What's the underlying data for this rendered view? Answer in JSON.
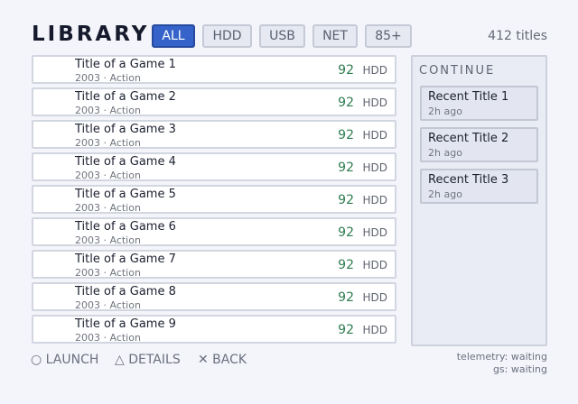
{
  "header": {
    "title": "LIBRARY",
    "filters": [
      "ALL",
      "HDD",
      "USB",
      "NET",
      "85+"
    ],
    "count": "412 titles"
  },
  "games": [
    {
      "title": "Title of a Game 1",
      "meta": "2003 · Action",
      "score": 92,
      "source": "HDD"
    },
    {
      "title": "Title of a Game 2",
      "meta": "2003 · Action",
      "score": 92,
      "source": "HDD"
    },
    {
      "title": "Title of a Game 3",
      "meta": "2003 · Action",
      "score": 92,
      "source": "HDD"
    },
    {
      "title": "Title of a Game 4",
      "meta": "2003 · Action",
      "score": 92,
      "source": "HDD"
    },
    {
      "title": "Title of a Game 5",
      "meta": "2003 · Action",
      "score": 92,
      "source": "HDD"
    },
    {
      "title": "Title of a Game 6",
      "meta": "2003 · Action",
      "score": 92,
      "source": "HDD"
    },
    {
      "title": "Title of a Game 7",
      "meta": "2003 · Action",
      "score": 92,
      "source": "HDD"
    },
    {
      "title": "Title of a Game 8",
      "meta": "2003 · Action",
      "score": 92,
      "source": "HDD"
    },
    {
      "title": "Title of a Game 9",
      "meta": "2003 · Action",
      "score": 92,
      "source": "HDD"
    }
  ],
  "continue": {
    "heading": "CONTINUE",
    "items": [
      {
        "title": "Recent Title 1",
        "time": "2h ago"
      },
      {
        "title": "Recent Title 2",
        "time": "2h ago"
      },
      {
        "title": "Recent Title 3",
        "time": "2h ago"
      }
    ]
  },
  "footer": {
    "actions": [
      "○ LAUNCH",
      "△ DETAILS",
      "✕ BACK"
    ],
    "status": [
      "telemetry: waiting",
      "gs: waiting"
    ]
  }
}
